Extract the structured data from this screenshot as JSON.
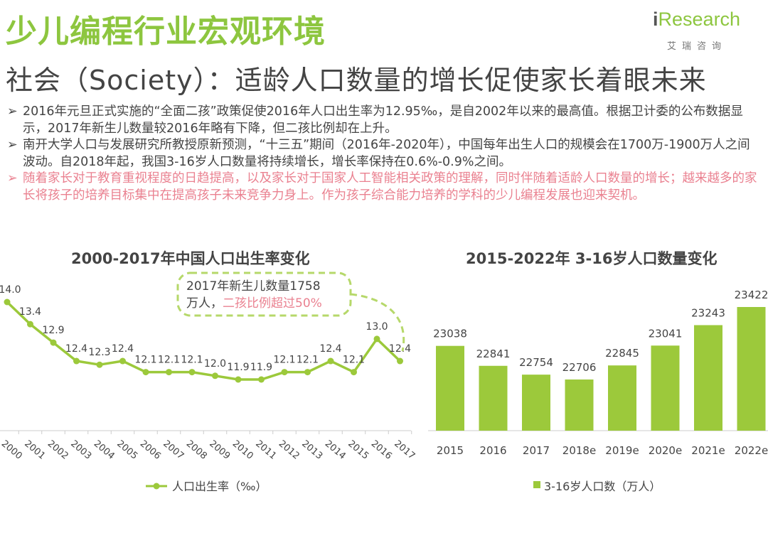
{
  "header": {
    "title": "少儿编程行业宏观环境",
    "subtitle": "社会（Society）：适龄人口数量的增长促使家长着眼未来",
    "logo": {
      "mark": "i",
      "text": "Research",
      "sub": "艾瑞咨询"
    }
  },
  "bullets": [
    {
      "marker": "➢",
      "text": "2016年元旦正式实施的“全面二孩”政策促使2016年人口出生率为12.95‰，是自2002年以来的最高值。根据卫计委的公布数据显示，2017年新生儿数量较2016年略有下降，但二孩比例却在上升。"
    },
    {
      "marker": "➢",
      "text": "南开大学人口与发展研究所教授原新预测，“十三五”期间（2016年-2020年），中国每年出生人口的规模会在1700万-1900万人之间波动。自2018年起，我国3-16岁人口数量将持续增长，增长率保持在0.6%-0.9%之间。"
    },
    {
      "marker": "➢",
      "text": "随着家长对于教育重视程度的日趋提高，以及家长对于国家人工智能相关政策的理解，同时伴随着适龄人口数量的增长；越来越多的家长将孩子的培养目标集中在提高孩子未来竞争力身上。作为孩子综合能力培养的学科的少儿编程发展也迎来契机。"
    }
  ],
  "chart_data": [
    {
      "type": "line",
      "title": "2000-2017年中国人口出生率变化",
      "categories": [
        "2000",
        "2001",
        "2002",
        "2003",
        "2004",
        "2005",
        "2006",
        "2007",
        "2008",
        "2009",
        "2010",
        "2011",
        "2012",
        "2013",
        "2014",
        "2015",
        "2016",
        "2017"
      ],
      "series": [
        {
          "name": "人口出生率（‰）",
          "values": [
            14.0,
            13.4,
            12.9,
            12.4,
            12.3,
            12.4,
            12.1,
            12.1,
            12.1,
            12.0,
            11.9,
            11.9,
            12.1,
            12.1,
            12.4,
            12.1,
            13.0,
            12.4
          ]
        }
      ],
      "data_labels": [
        "14.0",
        "13.4",
        "12.9",
        "12.4",
        "12.3",
        "12.4",
        "12.1",
        "12.1",
        "12.1",
        "12.0",
        "11.9",
        "11.9",
        "12.1",
        "12.1",
        "12.4",
        "12.1",
        "13.0",
        "12.4"
      ],
      "annotation": {
        "line1": "2017年新生儿数量1758",
        "line2_prefix": "万人，",
        "line2_highlight": "二孩比例超过50%"
      },
      "legend_position": "bottom",
      "colors": {
        "line": "#9cc93b",
        "annotation_border": "#b6d86a",
        "highlight": "#ea8190"
      }
    },
    {
      "type": "bar",
      "title": "2015-2022年 3-16岁人口数量变化",
      "categories": [
        "2015",
        "2016",
        "2017",
        "2018e",
        "2019e",
        "2020e",
        "2021e",
        "2022e"
      ],
      "series": [
        {
          "name": "3-16岁人口数（万人）",
          "values": [
            23038,
            22841,
            22754,
            22706,
            22845,
            23041,
            23243,
            23422
          ]
        }
      ],
      "data_labels": [
        "23038",
        "22841",
        "22754",
        "22706",
        "22845",
        "23041",
        "23243",
        "23422"
      ],
      "legend_position": "bottom",
      "colors": {
        "bar": "#9cc93b"
      }
    }
  ]
}
